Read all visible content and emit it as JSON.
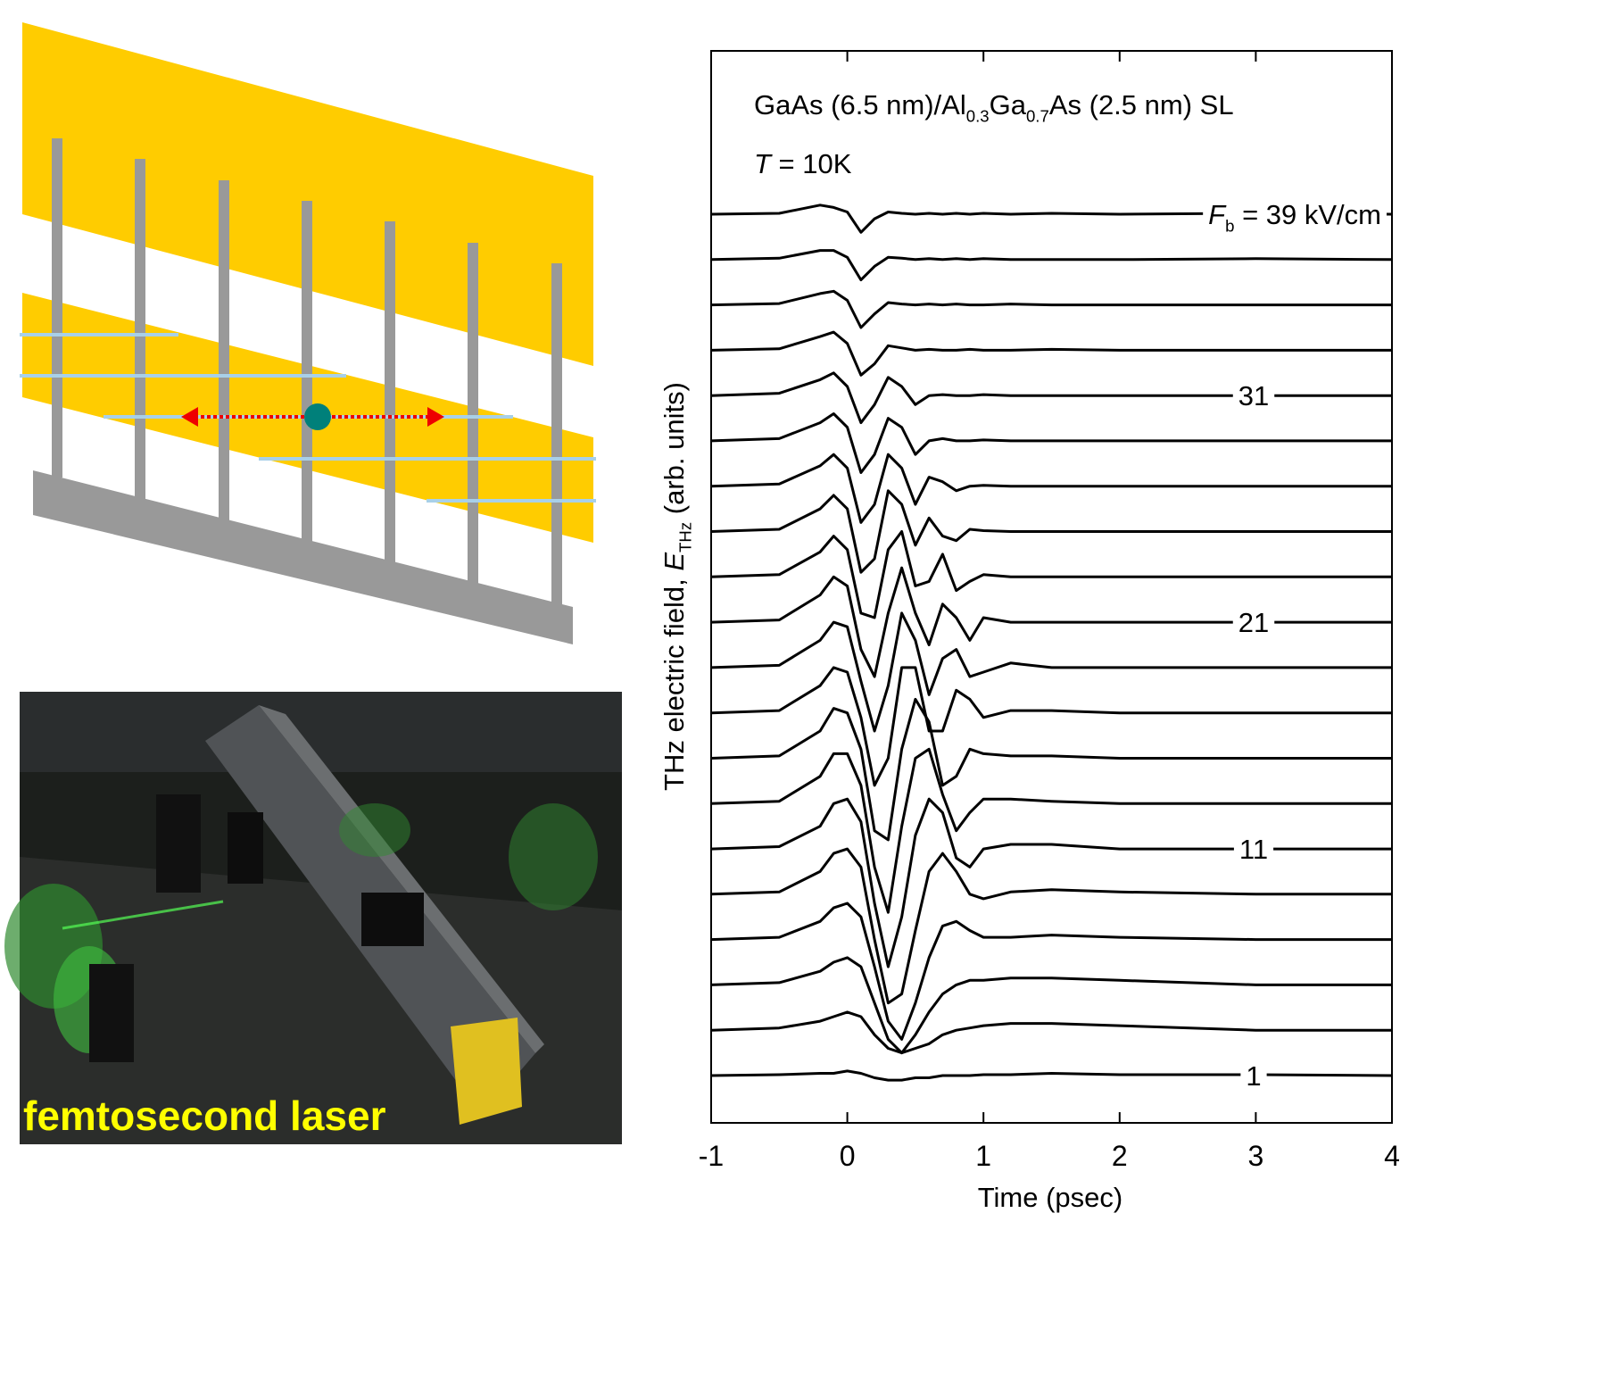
{
  "chart_data": {
    "type": "line",
    "title": [
      {
        "text": "GaAs (6.5 nm)/Al"
      },
      {
        "text": "0.3",
        "sub": true
      },
      {
        "text": "Ga"
      },
      {
        "text": "0.7",
        "sub": true
      },
      {
        "text": "As (2.5 nm) SL"
      }
    ],
    "subtitle": [
      {
        "text": "T",
        "italic": true
      },
      {
        "text": " = 10K"
      }
    ],
    "x_label": "Time (psec)",
    "y_label": [
      {
        "text": "THz electric field, "
      },
      {
        "text": "E",
        "italic": true
      },
      {
        "text": "THz",
        "sub": true
      },
      {
        "text": " (arb. units)"
      }
    ],
    "xlim": [
      -1,
      4
    ],
    "xticks": [
      -1,
      0,
      1,
      2,
      3,
      4
    ],
    "x": [
      -1,
      -0.5,
      -0.2,
      -0.1,
      0,
      0.1,
      0.2,
      0.3,
      0.4,
      0.5,
      0.6,
      0.7,
      0.8,
      0.9,
      1.0,
      1.2,
      1.5,
      2,
      3,
      4
    ],
    "color": "#000000",
    "series": [
      {
        "label": [
          {
            "text": "F",
            "italic": true
          },
          {
            "text": "b",
            "sub": true
          },
          {
            "text": " = 39 kV/cm"
          }
        ],
        "values": [
          0,
          0.02,
          0.2,
          0.15,
          0.05,
          -0.4,
          -0.1,
          0.05,
          0.02,
          0,
          0.02,
          0,
          0.02,
          0,
          0.02,
          0,
          0.02,
          0,
          0.02,
          0
        ]
      },
      {
        "values": [
          0,
          0.03,
          0.2,
          0.2,
          0.05,
          -0.45,
          -0.15,
          0.05,
          0.03,
          0,
          0.02,
          0,
          0.02,
          0,
          0.02,
          0,
          0,
          0,
          0.02,
          0
        ]
      },
      {
        "values": [
          0,
          0.03,
          0.25,
          0.3,
          0.1,
          -0.5,
          -0.2,
          0.05,
          0.02,
          0,
          0.02,
          0,
          0.02,
          0,
          0,
          0.02,
          0,
          0,
          0,
          0
        ]
      },
      {
        "values": [
          0,
          0.03,
          0.3,
          0.4,
          0.15,
          -0.55,
          -0.3,
          0.1,
          0.05,
          0,
          0.02,
          0,
          0,
          0.02,
          0,
          0,
          0.02,
          0,
          0,
          0
        ]
      },
      {
        "label": [
          {
            "text": "31"
          }
        ],
        "values": [
          0,
          0.05,
          0.35,
          0.5,
          0.2,
          -0.6,
          -0.2,
          0.4,
          0.2,
          -0.2,
          0,
          0.02,
          0,
          0,
          0.02,
          0,
          0,
          0,
          0,
          0
        ]
      },
      {
        "values": [
          0,
          0.05,
          0.4,
          0.6,
          0.3,
          -0.7,
          -0.3,
          0.5,
          0.3,
          -0.3,
          0,
          0.05,
          0,
          0,
          0.02,
          0,
          0,
          0,
          0,
          0
        ]
      },
      {
        "values": [
          0,
          0.05,
          0.45,
          0.7,
          0.4,
          -0.8,
          -0.4,
          0.7,
          0.4,
          -0.4,
          0.2,
          0.1,
          -0.1,
          0,
          0.02,
          0,
          0,
          0,
          0,
          0
        ]
      },
      {
        "values": [
          0,
          0.05,
          0.5,
          0.8,
          0.5,
          -0.9,
          -0.6,
          0.9,
          0.6,
          -0.3,
          0.3,
          -0.1,
          -0.2,
          0.05,
          0.02,
          0,
          0,
          0,
          0,
          0
        ]
      },
      {
        "values": [
          0,
          0.05,
          0.55,
          0.9,
          0.6,
          -0.8,
          -0.9,
          0.6,
          1.0,
          -0.2,
          -0.1,
          0.5,
          -0.3,
          -0.1,
          0.05,
          0,
          0,
          0,
          0,
          0
        ]
      },
      {
        "label": [
          {
            "text": "21"
          }
        ],
        "values": [
          0,
          0.05,
          0.6,
          1.0,
          0.8,
          -0.6,
          -1.2,
          0.2,
          1.2,
          0.2,
          -0.5,
          0.4,
          0.1,
          -0.4,
          0.1,
          0,
          0,
          0,
          0,
          0
        ]
      },
      {
        "values": [
          0,
          0.05,
          0.6,
          1.0,
          0.9,
          -0.3,
          -1.4,
          -0.4,
          1.2,
          0.6,
          -0.6,
          0.2,
          0.4,
          -0.2,
          -0.1,
          0.1,
          0,
          0,
          0,
          0
        ]
      },
      {
        "values": [
          0,
          0.05,
          0.6,
          1.0,
          0.9,
          -0.1,
          -1.6,
          -1.0,
          1.0,
          1.0,
          -0.4,
          -0.4,
          0.5,
          0.3,
          -0.1,
          0.05,
          0.05,
          0,
          0,
          0
        ]
      },
      {
        "values": [
          0,
          0.05,
          0.6,
          1.1,
          1.0,
          0.2,
          -1.6,
          -1.8,
          0.2,
          1.3,
          0.8,
          -0.6,
          -0.4,
          0.2,
          0.1,
          0.05,
          0.05,
          0,
          0,
          0
        ]
      },
      {
        "values": [
          0,
          0.05,
          0.6,
          1.1,
          1.1,
          0.4,
          -1.4,
          -2.4,
          -0.5,
          1.0,
          1.2,
          0.2,
          -0.6,
          -0.2,
          0.1,
          0.1,
          0.05,
          0,
          0,
          0
        ]
      },
      {
        "label": [
          {
            "text": "11"
          }
        ],
        "values": [
          0,
          0.05,
          0.5,
          1.0,
          1.1,
          0.6,
          -1.2,
          -2.6,
          -1.5,
          0.3,
          1.1,
          0.8,
          -0.2,
          -0.4,
          0,
          0.1,
          0.1,
          0,
          0,
          0
        ]
      },
      {
        "values": [
          0,
          0.05,
          0.5,
          0.9,
          1.0,
          0.6,
          -1.0,
          -2.4,
          -2.2,
          -0.8,
          0.5,
          0.9,
          0.5,
          0,
          -0.1,
          0.05,
          0.1,
          0.05,
          0,
          0
        ]
      },
      {
        "values": [
          0,
          0.05,
          0.4,
          0.7,
          0.8,
          0.5,
          -0.6,
          -1.8,
          -2.2,
          -1.4,
          -0.4,
          0.3,
          0.4,
          0.2,
          0.05,
          0.05,
          0.1,
          0.05,
          0,
          0
        ]
      },
      {
        "values": [
          0,
          0.05,
          0.3,
          0.5,
          0.6,
          0.4,
          -0.4,
          -1.2,
          -1.5,
          -1.1,
          -0.6,
          -0.2,
          0,
          0.1,
          0.1,
          0.15,
          0.15,
          0.1,
          0,
          0
        ]
      },
      {
        "values": [
          0,
          0.05,
          0.2,
          0.3,
          0.4,
          0.3,
          -0.1,
          -0.4,
          -0.5,
          -0.4,
          -0.3,
          -0.1,
          0,
          0.05,
          0.1,
          0.15,
          0.15,
          0.1,
          0,
          0
        ]
      },
      {
        "label": [
          {
            "text": "1"
          }
        ],
        "values": [
          0,
          0.02,
          0.05,
          0.05,
          0.1,
          0.05,
          -0.05,
          -0.1,
          -0.1,
          -0.05,
          -0.05,
          0,
          0,
          0,
          0.02,
          0.02,
          0.05,
          0.02,
          0.02,
          0
        ]
      }
    ]
  },
  "photo": {
    "caption": "femtosecond laser"
  }
}
